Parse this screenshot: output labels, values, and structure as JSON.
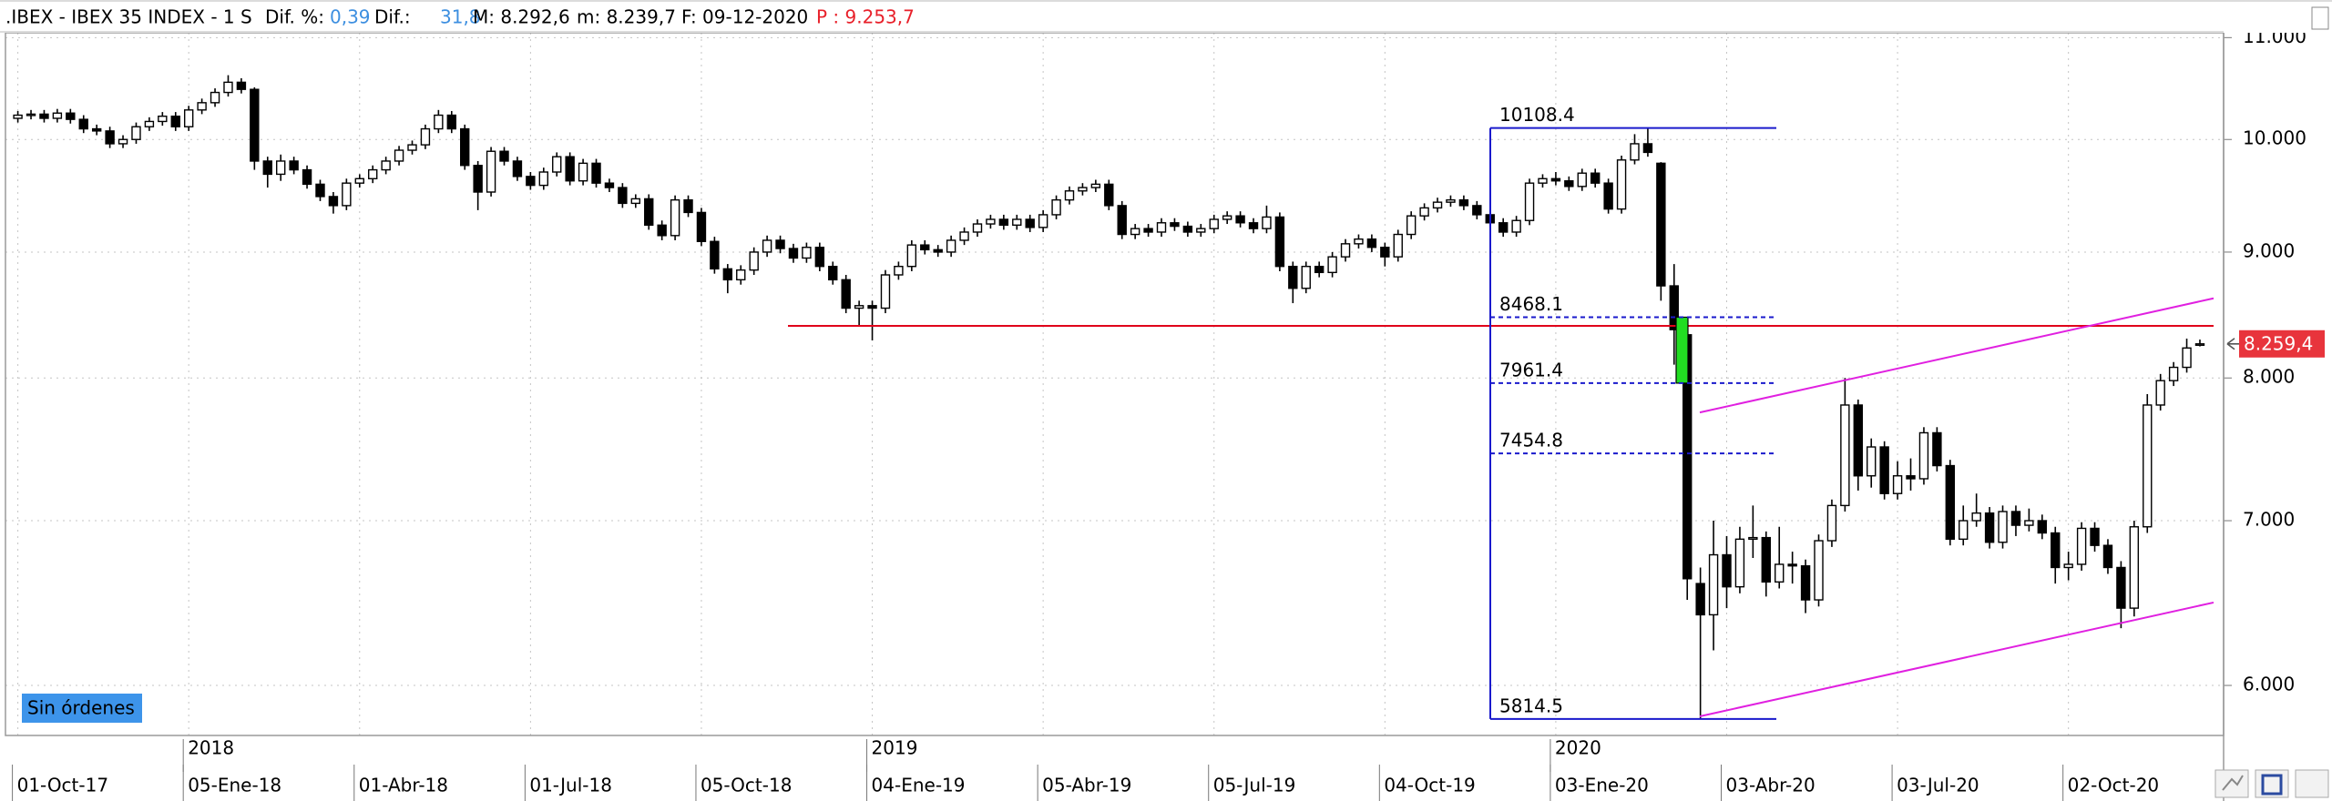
{
  "header": {
    "instrument": ".IBEX - IBEX 35 INDEX - 1 S",
    "pct_label": "Dif. %:",
    "pct": "0,39",
    "diff_label": "Dif.:",
    "diff": "31,8",
    "high": "M: 8.292,6",
    "low": "m: 8.239,7",
    "date": "F: 09-12-2020",
    "prev": "P : 9.253,7"
  },
  "status": "Sin órdenes",
  "chart_data": {
    "type": "candlestick",
    "log_scale": true,
    "grid": true,
    "up_color": "#ffffff",
    "down_color": "#000000",
    "ylim": [
      5750,
      11050
    ],
    "yticks": [
      {
        "value": 6000,
        "label": "6.000"
      },
      {
        "value": 7000,
        "label": "7.000"
      },
      {
        "value": 8000,
        "label": "8.000"
      },
      {
        "value": 9000,
        "label": "9.000"
      },
      {
        "value": 10000,
        "label": "10.000"
      },
      {
        "value": 11000,
        "label": "11.000"
      }
    ],
    "price_tag": {
      "value": 8259.4,
      "label": "8.259,4",
      "color": "#e8343c"
    },
    "support_line": {
      "value": 8400,
      "color": "#e0001a"
    },
    "channel": {
      "color": "#e020e0",
      "lines": [
        {
          "values": [
            5829,
            6484
          ]
        },
        {
          "values": [
            7746,
            8619
          ]
        }
      ]
    },
    "fibonacci": {
      "color": "#1a1acc",
      "highlight_color": "#22dd22",
      "levels": [
        10108.4,
        8468.1,
        7961.4,
        7454.8,
        5814.5
      ]
    },
    "candles": [
      {
        "o": 10200,
        "h": 10270,
        "l": 10160,
        "c": 10230,
        "date": "01-Oct-17"
      },
      {
        "o": 10230,
        "h": 10280,
        "l": 10190,
        "c": 10240
      },
      {
        "o": 10240,
        "h": 10280,
        "l": 10160,
        "c": 10200
      },
      {
        "o": 10200,
        "h": 10290,
        "l": 10160,
        "c": 10250
      },
      {
        "o": 10250,
        "h": 10290,
        "l": 10150,
        "c": 10190
      },
      {
        "o": 10190,
        "h": 10230,
        "l": 10060,
        "c": 10100
      },
      {
        "o": 10100,
        "h": 10140,
        "l": 10040,
        "c": 10080
      },
      {
        "o": 10080,
        "h": 10120,
        "l": 9920,
        "c": 9960
      },
      {
        "o": 9960,
        "h": 10040,
        "l": 9920,
        "c": 10000
      },
      {
        "o": 10000,
        "h": 10160,
        "l": 9960,
        "c": 10120
      },
      {
        "o": 10120,
        "h": 10210,
        "l": 10080,
        "c": 10170
      },
      {
        "o": 10170,
        "h": 10260,
        "l": 10130,
        "c": 10220
      },
      {
        "o": 10220,
        "h": 10260,
        "l": 10080,
        "c": 10120
      },
      {
        "o": 10120,
        "h": 10320,
        "l": 10080,
        "c": 10280,
        "date": "05-Ene-18",
        "year": "2018"
      },
      {
        "o": 10280,
        "h": 10390,
        "l": 10240,
        "c": 10350
      },
      {
        "o": 10350,
        "h": 10490,
        "l": 10310,
        "c": 10450
      },
      {
        "o": 10450,
        "h": 10620,
        "l": 10410,
        "c": 10550
      },
      {
        "o": 10550,
        "h": 10590,
        "l": 10440,
        "c": 10480
      },
      {
        "o": 10480,
        "h": 10500,
        "l": 9720,
        "c": 9800
      },
      {
        "o": 9800,
        "h": 9840,
        "l": 9560,
        "c": 9680
      },
      {
        "o": 9680,
        "h": 9860,
        "l": 9620,
        "c": 9800
      },
      {
        "o": 9800,
        "h": 9840,
        "l": 9680,
        "c": 9720
      },
      {
        "o": 9720,
        "h": 9760,
        "l": 9550,
        "c": 9590
      },
      {
        "o": 9590,
        "h": 9630,
        "l": 9440,
        "c": 9480
      },
      {
        "o": 9480,
        "h": 9520,
        "l": 9330,
        "c": 9400
      },
      {
        "o": 9400,
        "h": 9640,
        "l": 9360,
        "c": 9600
      },
      {
        "o": 9600,
        "h": 9680,
        "l": 9560,
        "c": 9640,
        "date": "01-Abr-18"
      },
      {
        "o": 9640,
        "h": 9760,
        "l": 9600,
        "c": 9720
      },
      {
        "o": 9720,
        "h": 9840,
        "l": 9680,
        "c": 9800
      },
      {
        "o": 9800,
        "h": 9940,
        "l": 9760,
        "c": 9900
      },
      {
        "o": 9900,
        "h": 9990,
        "l": 9860,
        "c": 9950
      },
      {
        "o": 9950,
        "h": 10140,
        "l": 9910,
        "c": 10100
      },
      {
        "o": 10100,
        "h": 10280,
        "l": 10060,
        "c": 10230
      },
      {
        "o": 10230,
        "h": 10270,
        "l": 10060,
        "c": 10100
      },
      {
        "o": 10100,
        "h": 10140,
        "l": 9720,
        "c": 9760
      },
      {
        "o": 9760,
        "h": 9800,
        "l": 9360,
        "c": 9520
      },
      {
        "o": 9520,
        "h": 9930,
        "l": 9480,
        "c": 9890
      },
      {
        "o": 9890,
        "h": 9930,
        "l": 9760,
        "c": 9800
      },
      {
        "o": 9800,
        "h": 9840,
        "l": 9620,
        "c": 9660
      },
      {
        "o": 9660,
        "h": 9700,
        "l": 9540,
        "c": 9580,
        "date": "01-Jul-18"
      },
      {
        "o": 9580,
        "h": 9740,
        "l": 9540,
        "c": 9700
      },
      {
        "o": 9700,
        "h": 9880,
        "l": 9660,
        "c": 9840
      },
      {
        "o": 9840,
        "h": 9880,
        "l": 9580,
        "c": 9620
      },
      {
        "o": 9620,
        "h": 9820,
        "l": 9580,
        "c": 9780
      },
      {
        "o": 9780,
        "h": 9820,
        "l": 9560,
        "c": 9600
      },
      {
        "o": 9600,
        "h": 9640,
        "l": 9520,
        "c": 9560
      },
      {
        "o": 9560,
        "h": 9600,
        "l": 9380,
        "c": 9420
      },
      {
        "o": 9420,
        "h": 9500,
        "l": 9380,
        "c": 9460
      },
      {
        "o": 9460,
        "h": 9500,
        "l": 9190,
        "c": 9230
      },
      {
        "o": 9230,
        "h": 9270,
        "l": 9100,
        "c": 9140
      },
      {
        "o": 9140,
        "h": 9490,
        "l": 9100,
        "c": 9450
      },
      {
        "o": 9450,
        "h": 9490,
        "l": 9300,
        "c": 9340
      },
      {
        "o": 9340,
        "h": 9380,
        "l": 9050,
        "c": 9090,
        "date": "05-Oct-18"
      },
      {
        "o": 9090,
        "h": 9130,
        "l": 8820,
        "c": 8860
      },
      {
        "o": 8860,
        "h": 8900,
        "l": 8660,
        "c": 8770
      },
      {
        "o": 8770,
        "h": 8890,
        "l": 8730,
        "c": 8850
      },
      {
        "o": 8850,
        "h": 9040,
        "l": 8810,
        "c": 9000
      },
      {
        "o": 9000,
        "h": 9140,
        "l": 8960,
        "c": 9100
      },
      {
        "o": 9100,
        "h": 9140,
        "l": 8990,
        "c": 9030
      },
      {
        "o": 9030,
        "h": 9070,
        "l": 8910,
        "c": 8950
      },
      {
        "o": 8950,
        "h": 9080,
        "l": 8910,
        "c": 9040
      },
      {
        "o": 9040,
        "h": 9080,
        "l": 8840,
        "c": 8880
      },
      {
        "o": 8880,
        "h": 8920,
        "l": 8730,
        "c": 8770
      },
      {
        "o": 8770,
        "h": 8810,
        "l": 8500,
        "c": 8540
      },
      {
        "o": 8540,
        "h": 8600,
        "l": 8400,
        "c": 8560
      },
      {
        "o": 8560,
        "h": 8600,
        "l": 8286,
        "c": 8540,
        "date": "04-Ene-19",
        "year": "2019"
      },
      {
        "o": 8540,
        "h": 8850,
        "l": 8500,
        "c": 8810
      },
      {
        "o": 8810,
        "h": 8920,
        "l": 8770,
        "c": 8880
      },
      {
        "o": 8880,
        "h": 9100,
        "l": 8840,
        "c": 9060
      },
      {
        "o": 9060,
        "h": 9100,
        "l": 8980,
        "c": 9020
      },
      {
        "o": 9020,
        "h": 9060,
        "l": 8960,
        "c": 9000
      },
      {
        "o": 9000,
        "h": 9140,
        "l": 8960,
        "c": 9100
      },
      {
        "o": 9100,
        "h": 9210,
        "l": 9060,
        "c": 9170
      },
      {
        "o": 9170,
        "h": 9280,
        "l": 9130,
        "c": 9240
      },
      {
        "o": 9240,
        "h": 9320,
        "l": 9200,
        "c": 9280
      },
      {
        "o": 9280,
        "h": 9320,
        "l": 9190,
        "c": 9230
      },
      {
        "o": 9230,
        "h": 9320,
        "l": 9190,
        "c": 9280
      },
      {
        "o": 9280,
        "h": 9320,
        "l": 9170,
        "c": 9210
      },
      {
        "o": 9210,
        "h": 9360,
        "l": 9170,
        "c": 9320,
        "date": "05-Abr-19"
      },
      {
        "o": 9320,
        "h": 9490,
        "l": 9280,
        "c": 9450
      },
      {
        "o": 9450,
        "h": 9570,
        "l": 9410,
        "c": 9530
      },
      {
        "o": 9530,
        "h": 9600,
        "l": 9490,
        "c": 9560
      },
      {
        "o": 9560,
        "h": 9630,
        "l": 9520,
        "c": 9590
      },
      {
        "o": 9590,
        "h": 9630,
        "l": 9360,
        "c": 9400
      },
      {
        "o": 9400,
        "h": 9440,
        "l": 9110,
        "c": 9150
      },
      {
        "o": 9150,
        "h": 9240,
        "l": 9110,
        "c": 9200
      },
      {
        "o": 9200,
        "h": 9240,
        "l": 9130,
        "c": 9170
      },
      {
        "o": 9170,
        "h": 9290,
        "l": 9130,
        "c": 9250
      },
      {
        "o": 9250,
        "h": 9290,
        "l": 9180,
        "c": 9220
      },
      {
        "o": 9220,
        "h": 9260,
        "l": 9130,
        "c": 9170
      },
      {
        "o": 9170,
        "h": 9240,
        "l": 9130,
        "c": 9200
      },
      {
        "o": 9200,
        "h": 9320,
        "l": 9160,
        "c": 9280,
        "date": "05-Jul-19"
      },
      {
        "o": 9280,
        "h": 9350,
        "l": 9240,
        "c": 9310
      },
      {
        "o": 9310,
        "h": 9350,
        "l": 9210,
        "c": 9250
      },
      {
        "o": 9250,
        "h": 9290,
        "l": 9160,
        "c": 9200
      },
      {
        "o": 9200,
        "h": 9400,
        "l": 9160,
        "c": 9300
      },
      {
        "o": 9300,
        "h": 9340,
        "l": 8840,
        "c": 8880
      },
      {
        "o": 8880,
        "h": 8920,
        "l": 8580,
        "c": 8700
      },
      {
        "o": 8700,
        "h": 8920,
        "l": 8660,
        "c": 8880
      },
      {
        "o": 8880,
        "h": 8920,
        "l": 8790,
        "c": 8830
      },
      {
        "o": 8830,
        "h": 9000,
        "l": 8790,
        "c": 8960
      },
      {
        "o": 8960,
        "h": 9110,
        "l": 8920,
        "c": 9070
      },
      {
        "o": 9070,
        "h": 9150,
        "l": 9030,
        "c": 9110
      },
      {
        "o": 9110,
        "h": 9150,
        "l": 9000,
        "c": 9040
      },
      {
        "o": 9040,
        "h": 9080,
        "l": 8880,
        "c": 8960,
        "date": "04-Oct-19"
      },
      {
        "o": 8960,
        "h": 9190,
        "l": 8920,
        "c": 9150
      },
      {
        "o": 9150,
        "h": 9350,
        "l": 9110,
        "c": 9310
      },
      {
        "o": 9310,
        "h": 9420,
        "l": 9270,
        "c": 9380
      },
      {
        "o": 9380,
        "h": 9470,
        "l": 9340,
        "c": 9430
      },
      {
        "o": 9430,
        "h": 9490,
        "l": 9390,
        "c": 9450
      },
      {
        "o": 9450,
        "h": 9490,
        "l": 9360,
        "c": 9400
      },
      {
        "o": 9400,
        "h": 9440,
        "l": 9280,
        "c": 9320
      },
      {
        "o": 9320,
        "h": 9360,
        "l": 9210,
        "c": 9250
      },
      {
        "o": 9250,
        "h": 9290,
        "l": 9130,
        "c": 9170
      },
      {
        "o": 9170,
        "h": 9310,
        "l": 9130,
        "c": 9270
      },
      {
        "o": 9270,
        "h": 9640,
        "l": 9230,
        "c": 9600
      },
      {
        "o": 9600,
        "h": 9680,
        "l": 9560,
        "c": 9640
      },
      {
        "o": 9640,
        "h": 9700,
        "l": 9580,
        "c": 9620,
        "date": "03-Ene-20",
        "year": "2020"
      },
      {
        "o": 9620,
        "h": 9660,
        "l": 9530,
        "c": 9570
      },
      {
        "o": 9570,
        "h": 9730,
        "l": 9530,
        "c": 9690
      },
      {
        "o": 9690,
        "h": 9730,
        "l": 9560,
        "c": 9600
      },
      {
        "o": 9600,
        "h": 9640,
        "l": 9330,
        "c": 9370
      },
      {
        "o": 9370,
        "h": 9850,
        "l": 9330,
        "c": 9810
      },
      {
        "o": 9810,
        "h": 10050,
        "l": 9770,
        "c": 9960
      },
      {
        "o": 9960,
        "h": 10108.4,
        "l": 9840,
        "c": 9880
      },
      {
        "o": 9780,
        "h": 9790,
        "l": 8600,
        "c": 8720
      },
      {
        "o": 8720,
        "h": 8900,
        "l": 8100,
        "c": 8370
      },
      {
        "o": 8330,
        "h": 8420,
        "l": 6500,
        "c": 6630
      },
      {
        "o": 6600,
        "h": 6700,
        "l": 5814.5,
        "c": 6410
      },
      {
        "o": 6410,
        "h": 7000,
        "l": 6200,
        "c": 6780
      },
      {
        "o": 6780,
        "h": 6900,
        "l": 6450,
        "c": 6580,
        "date": "03-Abr-20"
      },
      {
        "o": 6580,
        "h": 6960,
        "l": 6540,
        "c": 6880
      },
      {
        "o": 6880,
        "h": 7100,
        "l": 6760,
        "c": 6890
      },
      {
        "o": 6890,
        "h": 6930,
        "l": 6520,
        "c": 6610
      },
      {
        "o": 6610,
        "h": 6960,
        "l": 6570,
        "c": 6720
      },
      {
        "o": 6720,
        "h": 6800,
        "l": 6600,
        "c": 6710
      },
      {
        "o": 6710,
        "h": 6750,
        "l": 6420,
        "c": 6500
      },
      {
        "o": 6500,
        "h": 6910,
        "l": 6460,
        "c": 6870
      },
      {
        "o": 6870,
        "h": 7140,
        "l": 6830,
        "c": 7100
      },
      {
        "o": 7100,
        "h": 8000,
        "l": 7060,
        "c": 7800
      },
      {
        "o": 7800,
        "h": 7840,
        "l": 7200,
        "c": 7300
      },
      {
        "o": 7300,
        "h": 7560,
        "l": 7220,
        "c": 7500
      },
      {
        "o": 7500,
        "h": 7540,
        "l": 7140,
        "c": 7180
      },
      {
        "o": 7180,
        "h": 7400,
        "l": 7140,
        "c": 7300,
        "date": "03-Jul-20"
      },
      {
        "o": 7300,
        "h": 7420,
        "l": 7200,
        "c": 7280
      },
      {
        "o": 7280,
        "h": 7640,
        "l": 7240,
        "c": 7600
      },
      {
        "o": 7600,
        "h": 7640,
        "l": 7330,
        "c": 7370
      },
      {
        "o": 7370,
        "h": 7410,
        "l": 6840,
        "c": 6880
      },
      {
        "o": 6880,
        "h": 7100,
        "l": 6840,
        "c": 7000
      },
      {
        "o": 7000,
        "h": 7180,
        "l": 6960,
        "c": 7050
      },
      {
        "o": 7050,
        "h": 7090,
        "l": 6820,
        "c": 6860
      },
      {
        "o": 6860,
        "h": 7100,
        "l": 6820,
        "c": 7060
      },
      {
        "o": 7060,
        "h": 7100,
        "l": 6900,
        "c": 6970
      },
      {
        "o": 6970,
        "h": 7080,
        "l": 6930,
        "c": 7000
      },
      {
        "o": 7000,
        "h": 7040,
        "l": 6880,
        "c": 6920
      },
      {
        "o": 6920,
        "h": 6960,
        "l": 6600,
        "c": 6700
      },
      {
        "o": 6700,
        "h": 6800,
        "l": 6620,
        "c": 6720,
        "date": "02-Oct-20"
      },
      {
        "o": 6720,
        "h": 6990,
        "l": 6680,
        "c": 6950
      },
      {
        "o": 6950,
        "h": 6990,
        "l": 6800,
        "c": 6840
      },
      {
        "o": 6840,
        "h": 6880,
        "l": 6660,
        "c": 6700
      },
      {
        "o": 6700,
        "h": 6740,
        "l": 6330,
        "c": 6450
      },
      {
        "o": 6450,
        "h": 7000,
        "l": 6400,
        "c": 6960
      },
      {
        "o": 6960,
        "h": 7880,
        "l": 6920,
        "c": 7800
      },
      {
        "o": 7800,
        "h": 8030,
        "l": 7760,
        "c": 7980
      },
      {
        "o": 7980,
        "h": 8120,
        "l": 7940,
        "c": 8080
      },
      {
        "o": 8080,
        "h": 8300,
        "l": 8040,
        "c": 8227.6
      },
      {
        "o": 8250,
        "h": 8292.6,
        "l": 8239.7,
        "c": 8259.4
      }
    ]
  }
}
